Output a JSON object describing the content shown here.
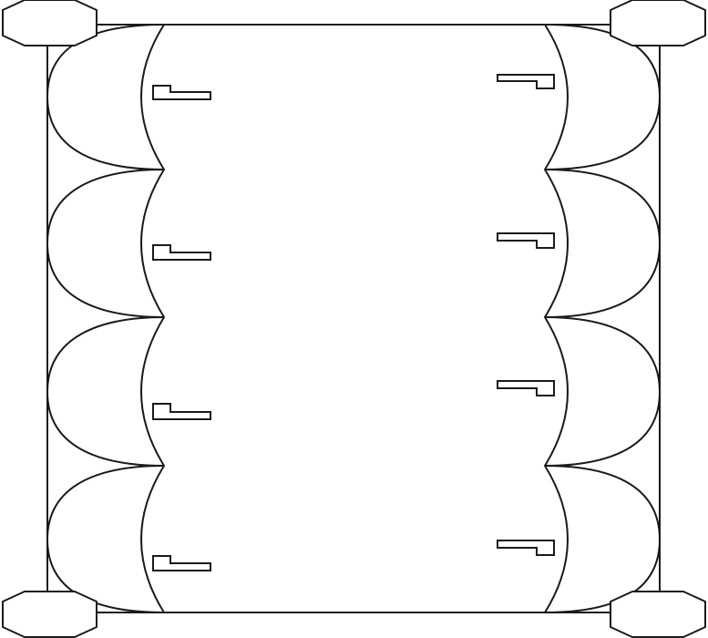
{
  "diagram": {
    "row_count": 4,
    "side_count": 2,
    "corner_shape": "hexagon",
    "left_markers_per_column": 4,
    "right_markers_per_column": 4,
    "marker_shape": "L-profile",
    "stroke_color": "#1a1a1a",
    "fill_color": "#ffffff"
  }
}
